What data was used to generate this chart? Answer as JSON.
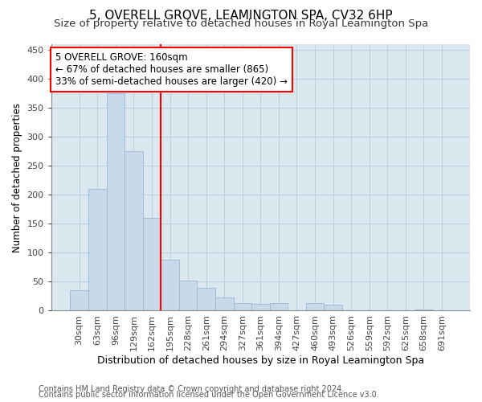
{
  "title": "5, OVERELL GROVE, LEAMINGTON SPA, CV32 6HP",
  "subtitle": "Size of property relative to detached houses in Royal Leamington Spa",
  "xlabel": "Distribution of detached houses by size in Royal Leamington Spa",
  "ylabel": "Number of detached properties",
  "footnote1": "Contains HM Land Registry data © Crown copyright and database right 2024.",
  "footnote2": "Contains public sector information licensed under the Open Government Licence v3.0.",
  "bar_labels": [
    "30sqm",
    "63sqm",
    "96sqm",
    "129sqm",
    "162sqm",
    "195sqm",
    "228sqm",
    "261sqm",
    "294sqm",
    "327sqm",
    "361sqm",
    "394sqm",
    "427sqm",
    "460sqm",
    "493sqm",
    "526sqm",
    "559sqm",
    "592sqm",
    "625sqm",
    "658sqm",
    "691sqm"
  ],
  "bar_values": [
    35,
    210,
    375,
    275,
    160,
    88,
    52,
    40,
    23,
    13,
    12,
    13,
    0,
    13,
    10,
    0,
    0,
    0,
    0,
    2,
    0
  ],
  "bar_color": "#c8d9ea",
  "bar_edge_color": "#9ab8d0",
  "vline_color": "red",
  "ylim": [
    0,
    460
  ],
  "yticks": [
    0,
    50,
    100,
    150,
    200,
    250,
    300,
    350,
    400,
    450
  ],
  "annotation_text": "5 OVERELL GROVE: 160sqm\n← 67% of detached houses are smaller (865)\n33% of semi-detached houses are larger (420) →",
  "annotation_box_color": "white",
  "annotation_box_edge_color": "red",
  "annotation_fontsize": 8.5,
  "title_fontsize": 11,
  "subtitle_fontsize": 9.5,
  "xlabel_fontsize": 9,
  "ylabel_fontsize": 8.5,
  "tick_fontsize": 8,
  "footnote_fontsize": 7,
  "fig_bg_color": "#ffffff",
  "plot_bg_color": "#dce8f0",
  "grid_color": "#b8cfe0"
}
